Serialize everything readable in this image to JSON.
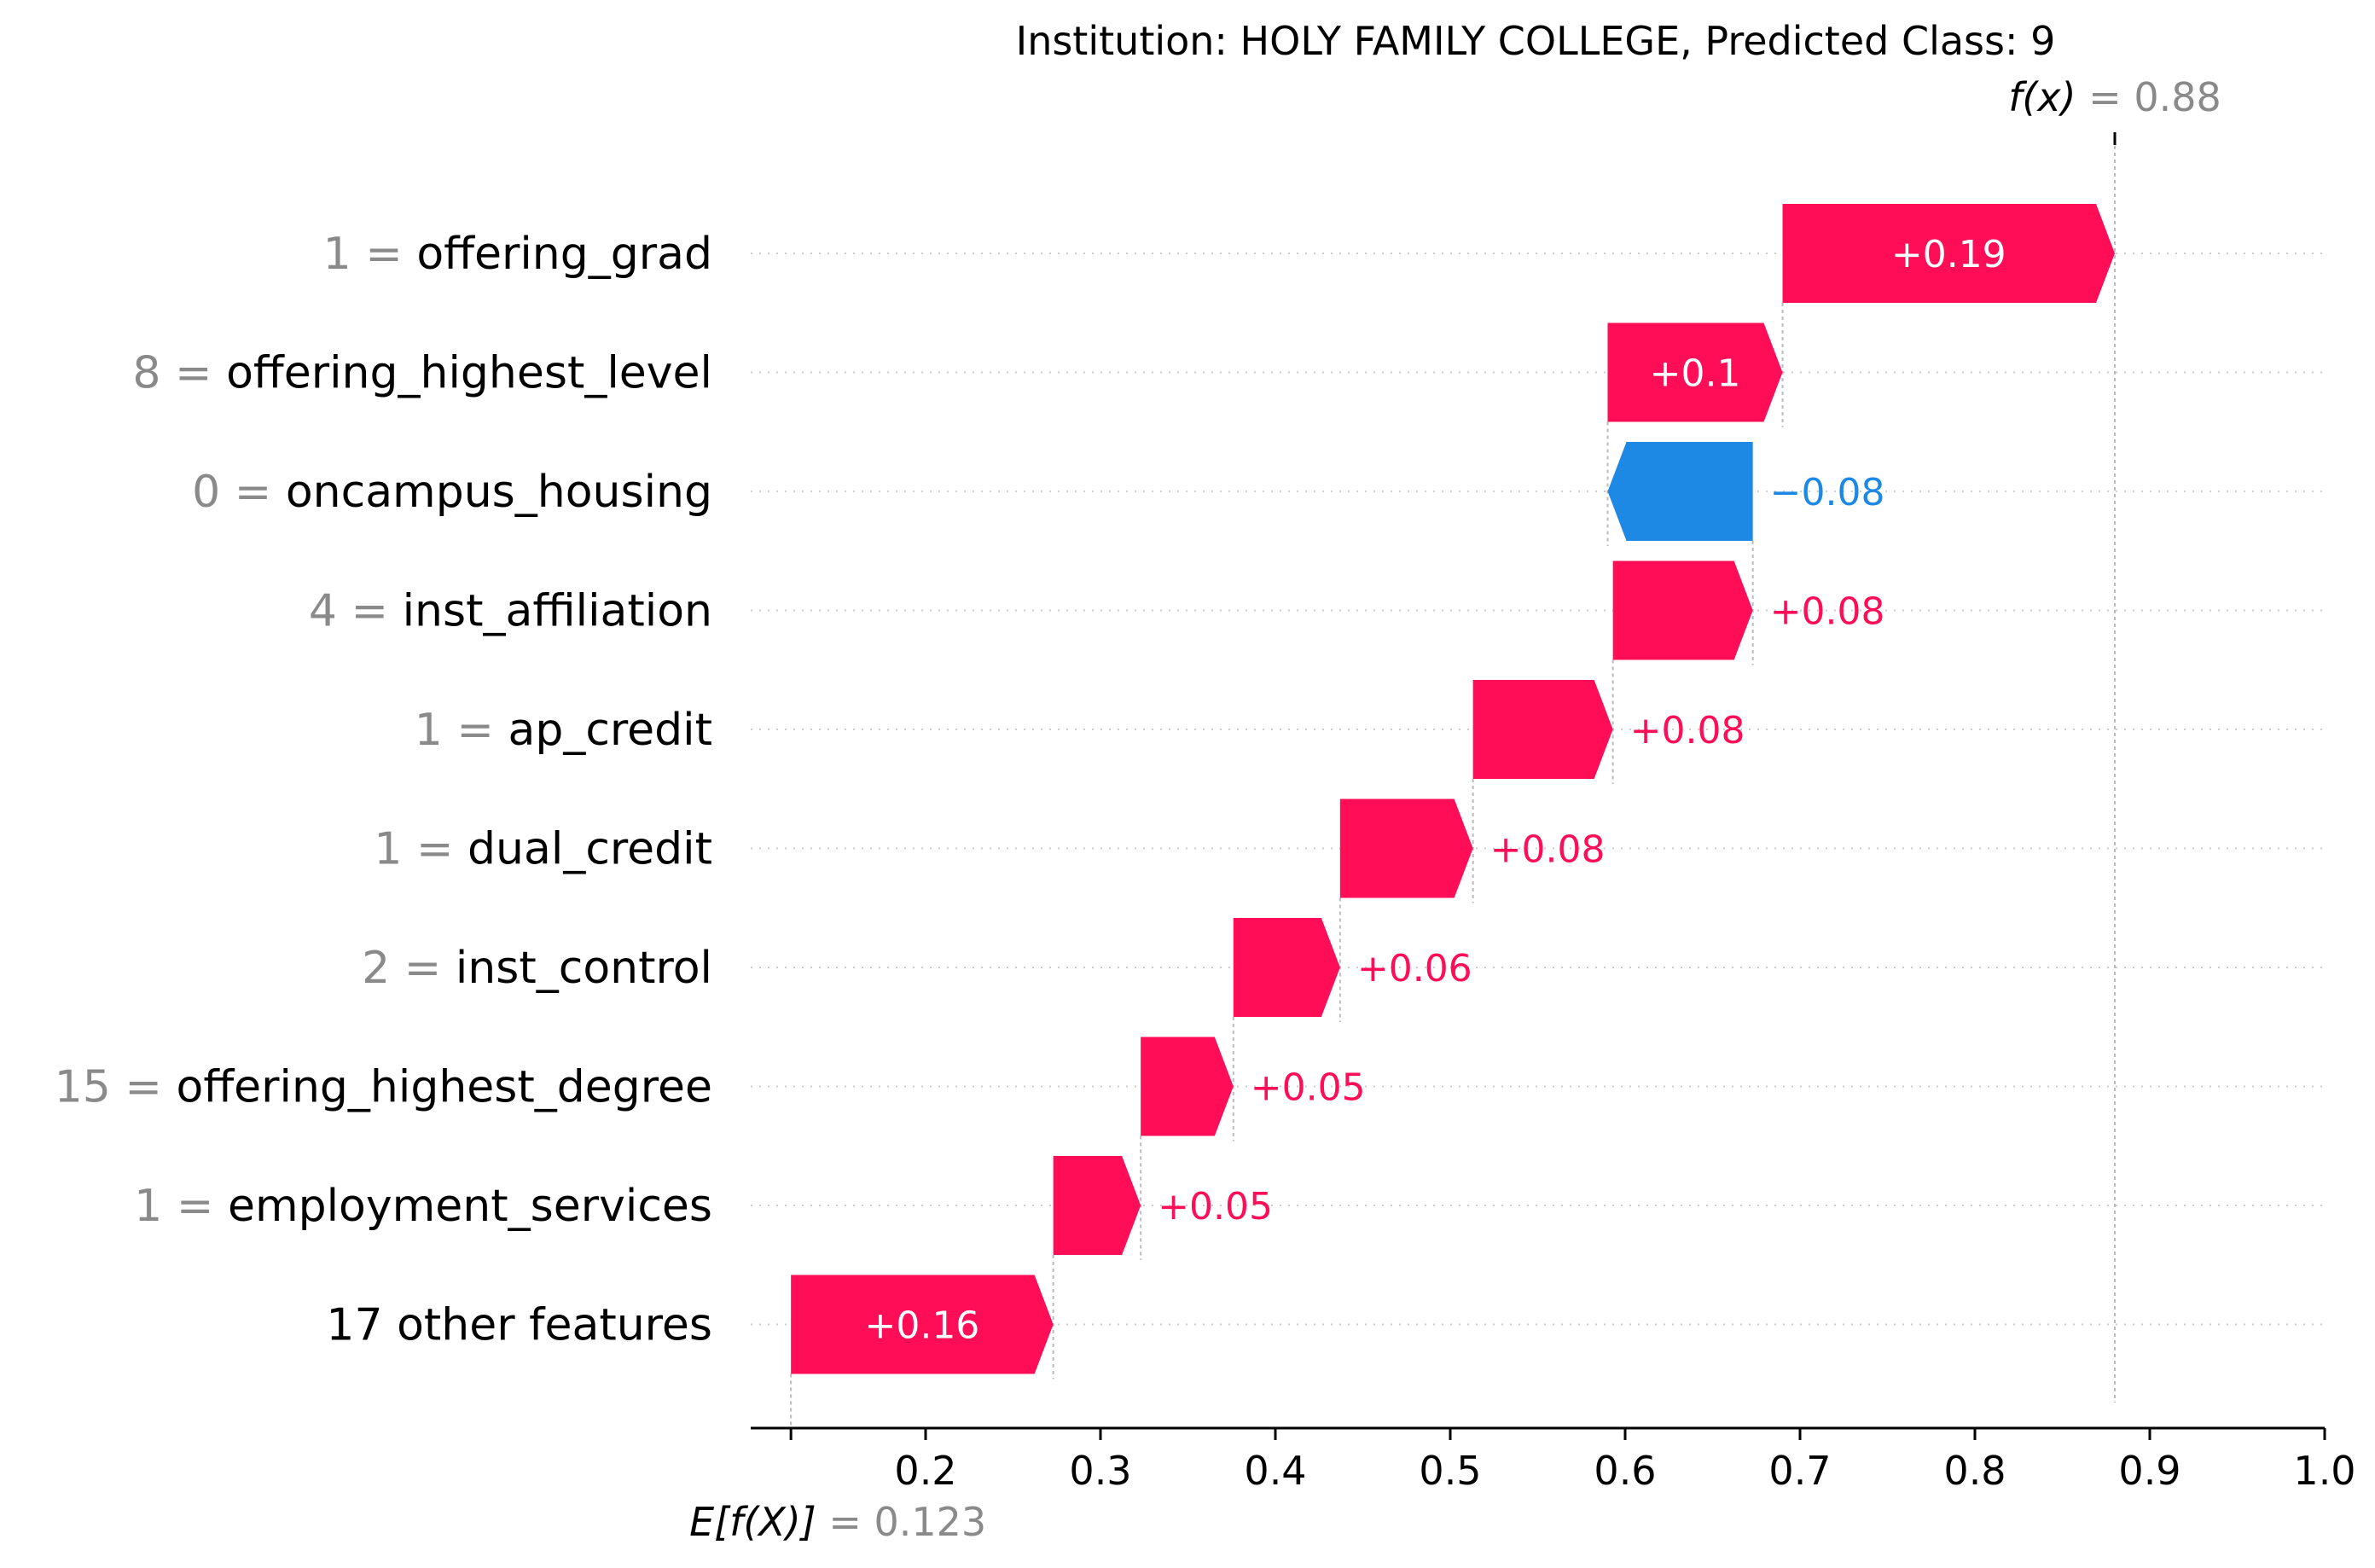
{
  "chart_data": {
    "type": "bar",
    "subtype": "waterfall",
    "title": "Institution: HOLY FAMILY COLLEGE, Predicted Class: 9",
    "base_value": 0.123,
    "base_value_label": "0.123",
    "output_value": 0.88,
    "output_value_label": "0.88",
    "output_prefix": "f(x)",
    "base_prefix": "E[f(X)]",
    "equals_sign": "=",
    "xlim": [
      0.1,
      1.0
    ],
    "xticks": [
      0.2,
      0.3,
      0.4,
      0.5,
      0.6,
      0.7,
      0.8,
      0.9,
      1.0
    ],
    "xtick_labels": [
      "0.2",
      "0.3",
      "0.4",
      "0.5",
      "0.6",
      "0.7",
      "0.8",
      "0.9",
      "1.0"
    ],
    "features": [
      {
        "value": "1",
        "name": "offering_grad",
        "start": 0.69,
        "end": 0.88,
        "label": "+0.19"
      },
      {
        "value": "8",
        "name": "offering_highest_level",
        "start": 0.59,
        "end": 0.69,
        "label": "+0.1"
      },
      {
        "value": "0",
        "name": "oncampus_housing",
        "start": 0.673,
        "end": 0.59,
        "label": "−0.08"
      },
      {
        "value": "4",
        "name": "inst_affiliation",
        "start": 0.593,
        "end": 0.673,
        "label": "+0.08"
      },
      {
        "value": "1",
        "name": "ap_credit",
        "start": 0.513,
        "end": 0.593,
        "label": "+0.08"
      },
      {
        "value": "1",
        "name": "dual_credit",
        "start": 0.437,
        "end": 0.513,
        "label": "+0.08"
      },
      {
        "value": "2",
        "name": "inst_control",
        "start": 0.376,
        "end": 0.437,
        "label": "+0.06"
      },
      {
        "value": "15",
        "name": "offering_highest_degree",
        "start": 0.323,
        "end": 0.376,
        "label": "+0.05"
      },
      {
        "value": "1",
        "name": "employment_services",
        "start": 0.273,
        "end": 0.323,
        "label": "+0.05"
      },
      {
        "value": "",
        "name": "17 other features",
        "start": 0.123,
        "end": 0.273,
        "label": "+0.16"
      }
    ],
    "colors": {
      "positive": "#ff0d57",
      "negative": "#1e88e5",
      "axis": "#000000",
      "grid": "#cccccc",
      "muted": "#8a8a8a"
    }
  }
}
